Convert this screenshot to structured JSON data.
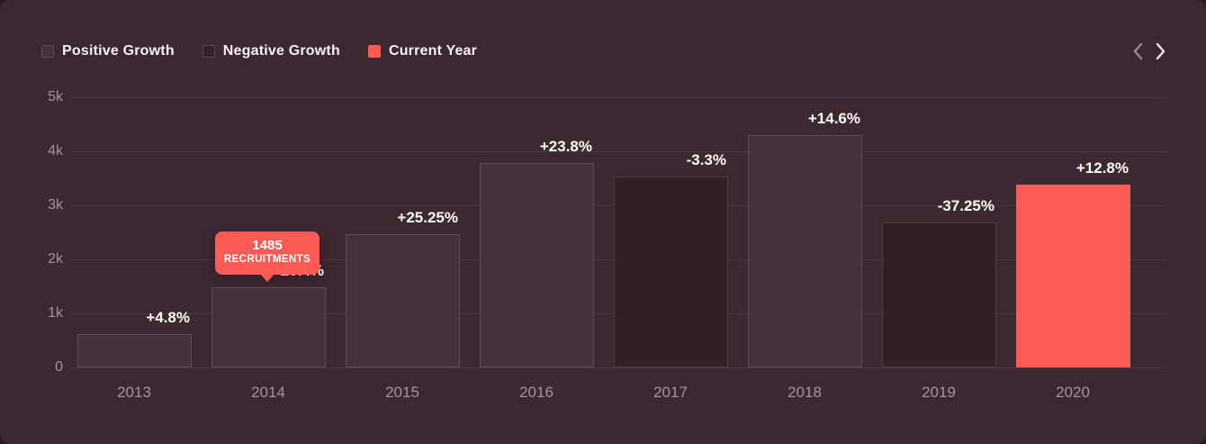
{
  "colors": {
    "page_background": "#2c1a23",
    "card_background": "#3d2731",
    "positive_bar": "#46303a",
    "negative_bar": "#332027",
    "current_bar": "#fc5a55",
    "accent": "#fc5a55",
    "axis_text": "#a5939d",
    "label_text": "#ffffff"
  },
  "legend": {
    "items": [
      {
        "label": "Positive Growth",
        "type": "positive"
      },
      {
        "label": "Negative Growth",
        "type": "negative"
      },
      {
        "label": "Current Year",
        "type": "current"
      }
    ]
  },
  "nav": {
    "prev_icon": "chevron-left",
    "next_icon": "chevron-right"
  },
  "tooltip": {
    "value": "1485",
    "label": "RECRUITMENTS",
    "target_year": "2014"
  },
  "chart_data": {
    "type": "bar",
    "title": "",
    "xlabel": "",
    "ylabel": "",
    "categories": [
      "2013",
      "2014",
      "2015",
      "2016",
      "2017",
      "2018",
      "2019",
      "2020"
    ],
    "series": [
      {
        "name": "Recruitments",
        "values": [
          620,
          1485,
          2470,
          3780,
          3530,
          4300,
          2680,
          3380
        ]
      }
    ],
    "growth_labels": [
      "+4.8%",
      "+20.4%",
      "+25.25%",
      "+23.8%",
      "-3.3%",
      "+14.6%",
      "-37.25%",
      "+12.8%"
    ],
    "bar_types": [
      "positive",
      "positive",
      "positive",
      "positive",
      "negative",
      "positive",
      "negative",
      "current"
    ],
    "ylim": [
      0,
      5000
    ],
    "y_tick_labels": [
      "5k",
      "4k",
      "3k",
      "2k",
      "1k",
      "0"
    ],
    "y_tick_values": [
      5000,
      4000,
      3000,
      2000,
      1000,
      0
    ],
    "grid": true,
    "legend_position": "top-left",
    "annotations": [
      {
        "category": "2014",
        "value": "1485",
        "label": "RECRUITMENTS"
      }
    ]
  }
}
